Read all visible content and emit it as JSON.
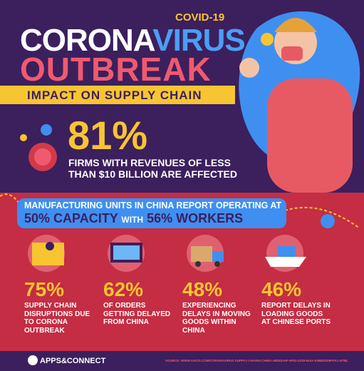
{
  "header": {
    "kicker": "COVID-19",
    "title_part1": "CORONA",
    "title_part2": "VIRUS",
    "title_line2": "OUTBREAK",
    "banner": "IMPACT ON SUPPLY CHAIN"
  },
  "headline_stat": {
    "value": "81%",
    "text": "FIRMS WITH REVENUES OF LESS THAN $10 BILLION ARE AFFECTED"
  },
  "capacity": {
    "intro": "MANUFACTURING UNITS IN CHINA REPORT OPERATING AT",
    "capacity": "50% CAPACITY",
    "joiner": "WITH",
    "workers": "56% WORKERS"
  },
  "stats": [
    {
      "value": "75%",
      "text": "SUPPLY CHAIN DISRUPTIONS DUE TO CORONA OUTBREAK"
    },
    {
      "value": "62%",
      "text": "OF ORDERS GETTING DELAYED FROM CHINA"
    },
    {
      "value": "48%",
      "text": "EXPERIENCING DELAYS IN MOVING GOODS WITHIN CHINA"
    },
    {
      "value": "46%",
      "text": "REPORT DELAYS IN LOADING GOODS AT CHINESE PORTS"
    }
  ],
  "footer": {
    "brand_part1": "APPS",
    "brand_part2": "CONNECT",
    "source_label": "SOURCE:",
    "source_url": "WWW.AXIOS.COM/CORONAVIRUS-SUPPLY-CHAINS-CHINA-46D82A0F-9F52-4229-840A-936B2DD8FFA1.HTML"
  }
}
